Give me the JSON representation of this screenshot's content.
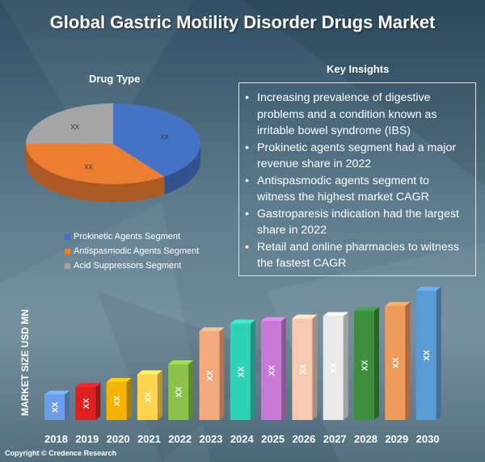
{
  "title": "Global Gastric Motility Disorder Drugs Market",
  "pie_heading": "Drug Type",
  "insights_heading": "Key Insights",
  "insights": [
    "Increasing prevalence of digestive problems and a condition known as irritable bowel syndrome (IBS)",
    "Prokinetic agents segment had a major revenue share in 2022",
    "Antispasmodic agents segment to witness the highest market CAGR",
    "Gastroparesis indication had the largest share in 2022",
    "Retail and online pharmacies to witness the fastest CAGR"
  ],
  "y_axis_label": "MARKET SIZE USD MN",
  "copyright": "Copyright © Credence Research",
  "chart_data": [
    {
      "type": "pie",
      "title": "Drug Type",
      "categories": [
        "Prokinetic Agents Segment",
        "Antispasmodic Agents Segment",
        "Acid Suppressors Segment"
      ],
      "values": [
        40,
        35,
        25
      ],
      "data_labels": [
        "XX",
        "XX",
        "XX"
      ],
      "colors": [
        "#4472c4",
        "#ed7d31",
        "#a5a5a5"
      ],
      "legend_position": "bottom"
    },
    {
      "type": "bar",
      "categories": [
        "2018",
        "2019",
        "2020",
        "2021",
        "2022",
        "2023",
        "2024",
        "2025",
        "2026",
        "2027",
        "2028",
        "2029",
        "2030"
      ],
      "series": [
        {
          "values": [
            1.0,
            1.3,
            1.5,
            1.8,
            2.2,
            3.5,
            3.8,
            3.9,
            4.0,
            4.1,
            4.3,
            4.5,
            5.1
          ]
        }
      ],
      "data_labels": [
        "XX",
        "XX",
        "XX",
        "XX",
        "XX",
        "XX",
        "XX",
        "XX",
        "XX",
        "XX",
        "XX",
        "XX",
        "XX"
      ],
      "colors": [
        "#6d9eeb",
        "#e02020",
        "#f6b400",
        "#ffd54f",
        "#8bc34a",
        "#f4a97c",
        "#2ed3b7",
        "#c97ad6",
        "#f6c9b0",
        "#e9e9e9",
        "#3d8f3d",
        "#f09a5c",
        "#5b9bd5"
      ],
      "ylabel": "MARKET SIZE USD MN",
      "grid": false
    }
  ]
}
